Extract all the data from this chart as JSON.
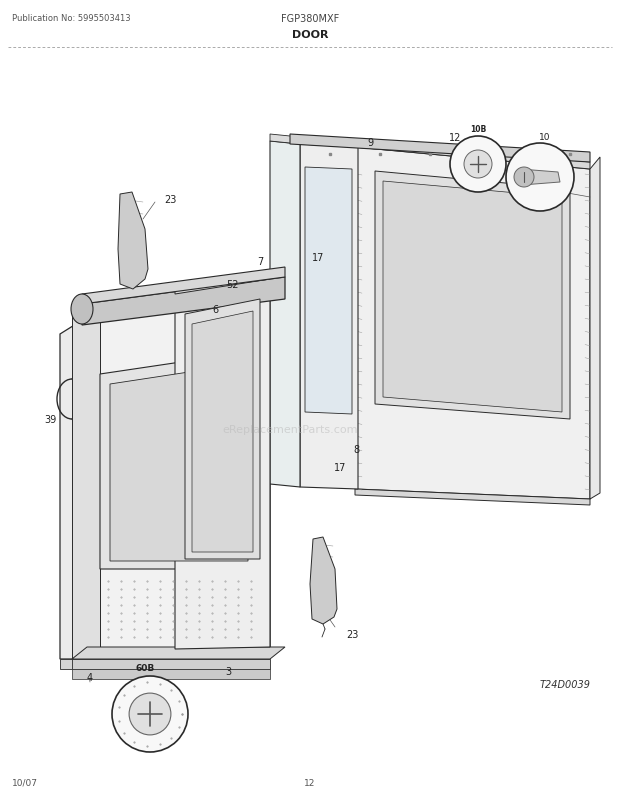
{
  "title": "DOOR",
  "pub_no": "Publication No: 5995503413",
  "model": "FGP380MXF",
  "date": "10/07",
  "page": "12",
  "diagram_id": "T24D0039",
  "bg_color": "#ffffff",
  "lc": "#2a2a2a",
  "watermark": "eReplacementParts.com"
}
